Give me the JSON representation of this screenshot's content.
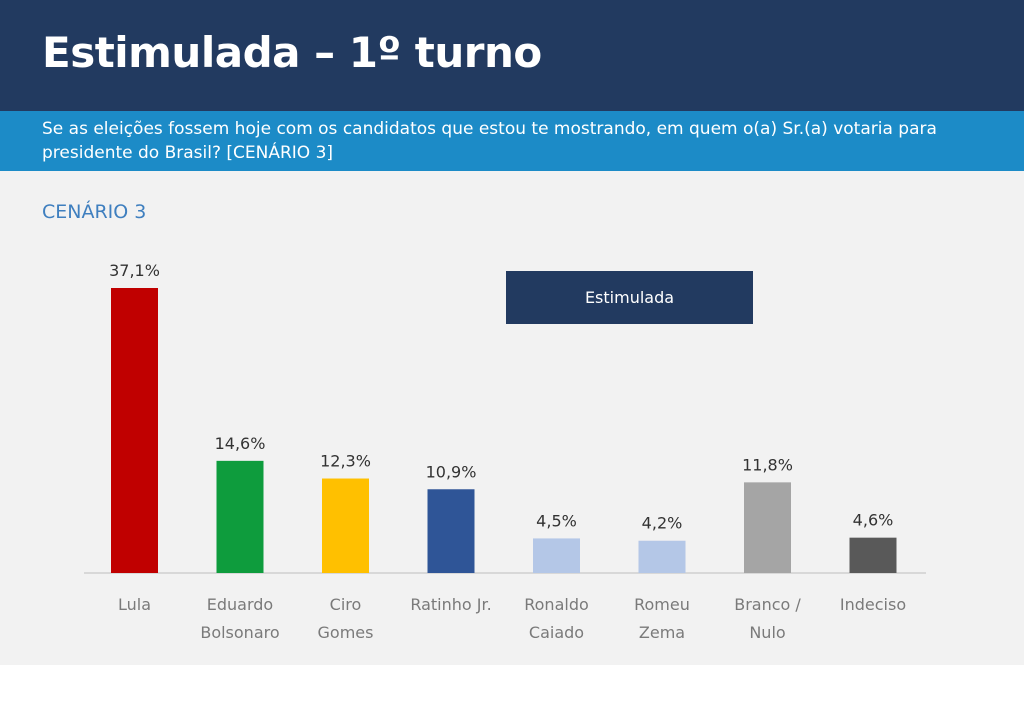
{
  "header": {
    "title": "Estimulada – 1º turno",
    "question": "Se as eleições fossem hoje com os candidatos que estou te mostrando, em quem o(a) Sr.(a) votaria para presidente do Brasil? [CENÁRIO 3]",
    "bg_color": "#223a60",
    "band_color": "#1c8bc7"
  },
  "chart_data": {
    "type": "bar",
    "scenario_label": "CENÁRIO 3",
    "legend": [
      "Estimulada"
    ],
    "categories": [
      [
        "Lula"
      ],
      [
        "Eduardo",
        "Bolsonaro"
      ],
      [
        "Ciro",
        "Gomes"
      ],
      [
        "Ratinho Jr."
      ],
      [
        "Ronaldo",
        "Caiado"
      ],
      [
        "Romeu",
        "Zema"
      ],
      [
        "Branco /",
        "Nulo"
      ],
      [
        "Indeciso"
      ]
    ],
    "values": [
      37.1,
      14.6,
      12.3,
      10.9,
      4.5,
      4.2,
      11.8,
      4.6
    ],
    "value_labels": [
      "37,1%",
      "14,6%",
      "12,3%",
      "10,9%",
      "4,5%",
      "4,2%",
      "11,8%",
      "4,6%"
    ],
    "colors": [
      "#c00000",
      "#0e9c3d",
      "#ffc000",
      "#2f5597",
      "#b4c7e7",
      "#b4c7e7",
      "#a5a5a5",
      "#595959"
    ],
    "ylim": [
      0,
      37.1
    ],
    "grid": false
  }
}
